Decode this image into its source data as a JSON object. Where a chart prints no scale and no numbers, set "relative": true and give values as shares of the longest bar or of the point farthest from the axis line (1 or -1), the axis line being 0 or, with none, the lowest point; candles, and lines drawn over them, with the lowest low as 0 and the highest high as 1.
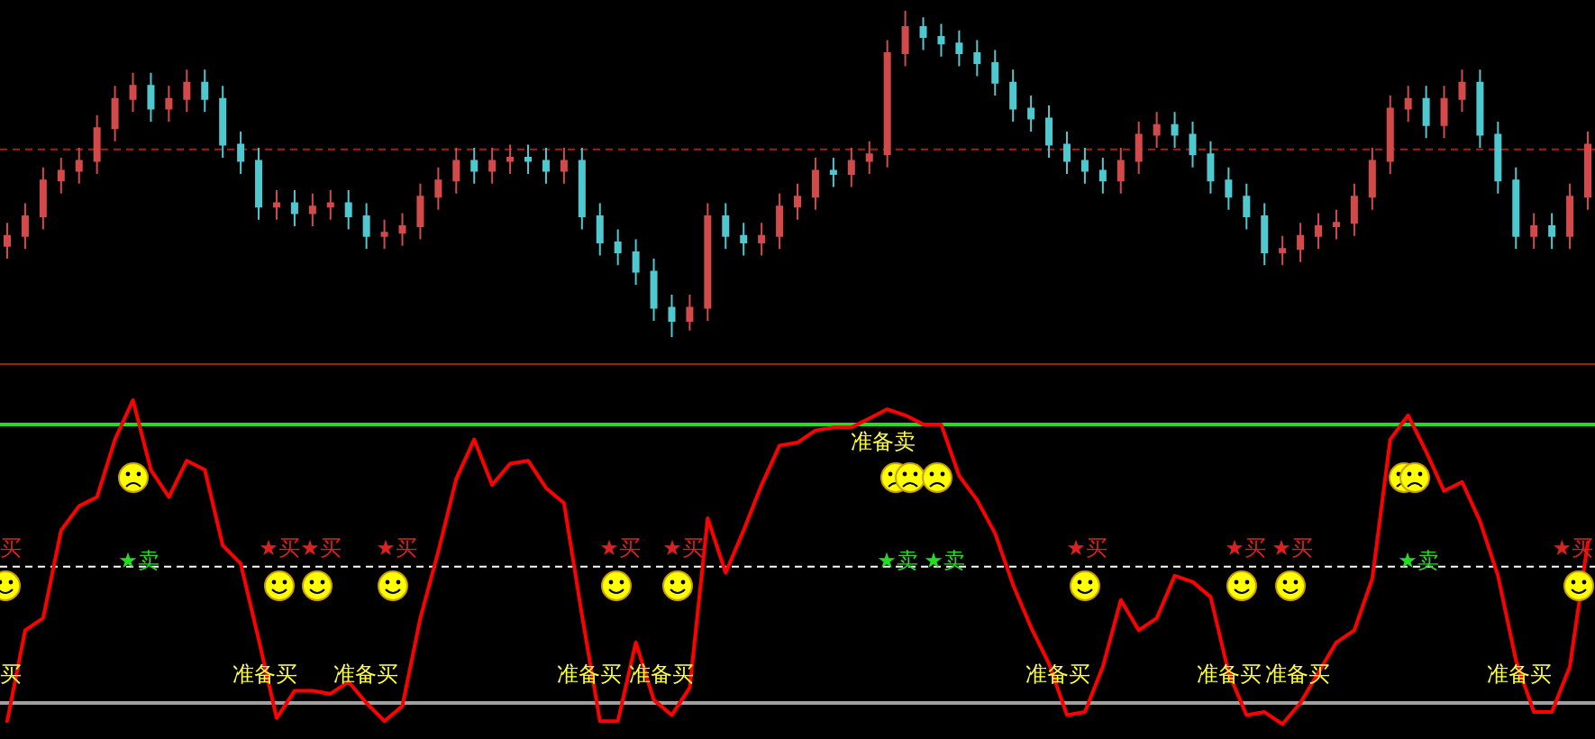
{
  "chart_data": [
    {
      "type": "candlestick",
      "relative": true,
      "categories": [
        null,
        null,
        null,
        null,
        null,
        null,
        null,
        null,
        null,
        null,
        null,
        null,
        null,
        null,
        null,
        null,
        null,
        null,
        null,
        null,
        null,
        null,
        null,
        null,
        null,
        null,
        null,
        null,
        null,
        null,
        null,
        null,
        null,
        null,
        null,
        null,
        null,
        null,
        null,
        null,
        null,
        null,
        null,
        null,
        null,
        null,
        null,
        null,
        null,
        null,
        null,
        null,
        null,
        null,
        null,
        null,
        null,
        null,
        null,
        null,
        null,
        null,
        null,
        null,
        null,
        null,
        null,
        null,
        null,
        null,
        null,
        null,
        null,
        null,
        null,
        null,
        null,
        null,
        null,
        null,
        null,
        null,
        null,
        null,
        null,
        null,
        null,
        null,
        null
      ],
      "ohlc": [
        [
          0.28,
          0.35,
          0.24,
          0.31
        ],
        [
          0.31,
          0.41,
          0.27,
          0.37
        ],
        [
          0.37,
          0.52,
          0.33,
          0.48
        ],
        [
          0.48,
          0.55,
          0.44,
          0.51
        ],
        [
          0.51,
          0.58,
          0.47,
          0.54
        ],
        [
          0.54,
          0.68,
          0.5,
          0.64
        ],
        [
          0.64,
          0.77,
          0.6,
          0.73
        ],
        [
          0.73,
          0.81,
          0.69,
          0.77
        ],
        [
          0.77,
          0.81,
          0.66,
          0.7
        ],
        [
          0.7,
          0.77,
          0.66,
          0.73
        ],
        [
          0.73,
          0.82,
          0.69,
          0.78
        ],
        [
          0.78,
          0.82,
          0.69,
          0.73
        ],
        [
          0.73,
          0.77,
          0.55,
          0.59
        ],
        [
          0.59,
          0.63,
          0.5,
          0.54
        ],
        [
          0.54,
          0.58,
          0.36,
          0.4
        ],
        [
          0.4,
          0.45,
          0.36,
          0.41
        ],
        [
          0.41,
          0.45,
          0.34,
          0.38
        ],
        [
          0.38,
          0.44,
          0.34,
          0.4
        ],
        [
          0.4,
          0.45,
          0.36,
          0.41
        ],
        [
          0.41,
          0.45,
          0.33,
          0.37
        ],
        [
          0.37,
          0.41,
          0.27,
          0.31
        ],
        [
          0.31,
          0.36,
          0.27,
          0.32
        ],
        [
          0.32,
          0.38,
          0.28,
          0.34
        ],
        [
          0.34,
          0.47,
          0.3,
          0.43
        ],
        [
          0.43,
          0.52,
          0.39,
          0.48
        ],
        [
          0.48,
          0.58,
          0.44,
          0.54
        ],
        [
          0.54,
          0.58,
          0.47,
          0.51
        ],
        [
          0.51,
          0.58,
          0.47,
          0.54
        ],
        [
          0.54,
          0.59,
          0.5,
          0.55
        ],
        [
          0.55,
          0.59,
          0.5,
          0.54
        ],
        [
          0.54,
          0.58,
          0.47,
          0.51
        ],
        [
          0.51,
          0.58,
          0.47,
          0.54
        ],
        [
          0.54,
          0.58,
          0.33,
          0.37
        ],
        [
          0.37,
          0.41,
          0.25,
          0.29
        ],
        [
          0.29,
          0.33,
          0.22,
          0.26
        ],
        [
          0.26,
          0.3,
          0.16,
          0.2
        ],
        [
          0.2,
          0.24,
          0.05,
          0.09
        ],
        [
          0.09,
          0.13,
          0,
          0.05
        ],
        [
          0.05,
          0.13,
          0.02,
          0.09
        ],
        [
          0.09,
          0.41,
          0.05,
          0.37
        ],
        [
          0.37,
          0.41,
          0.27,
          0.31
        ],
        [
          0.31,
          0.35,
          0.25,
          0.29
        ],
        [
          0.29,
          0.35,
          0.25,
          0.31
        ],
        [
          0.31,
          0.44,
          0.27,
          0.4
        ],
        [
          0.4,
          0.47,
          0.36,
          0.43
        ],
        [
          0.43,
          0.55,
          0.39,
          0.51
        ],
        [
          0.51,
          0.55,
          0.46,
          0.5
        ],
        [
          0.5,
          0.58,
          0.46,
          0.54
        ],
        [
          0.54,
          0.6,
          0.5,
          0.56
        ],
        [
          0.56,
          0.91,
          0.52,
          0.87
        ],
        [
          0.87,
          1,
          0.83,
          0.95
        ],
        [
          0.95,
          0.98,
          0.88,
          0.92
        ],
        [
          0.92,
          0.96,
          0.86,
          0.9
        ],
        [
          0.9,
          0.94,
          0.83,
          0.87
        ],
        [
          0.87,
          0.91,
          0.8,
          0.84
        ],
        [
          0.84,
          0.88,
          0.74,
          0.78
        ],
        [
          0.78,
          0.82,
          0.66,
          0.7
        ],
        [
          0.7,
          0.74,
          0.63,
          0.67
        ],
        [
          0.67,
          0.71,
          0.55,
          0.59
        ],
        [
          0.59,
          0.63,
          0.5,
          0.54
        ],
        [
          0.54,
          0.58,
          0.47,
          0.51
        ],
        [
          0.51,
          0.55,
          0.44,
          0.48
        ],
        [
          0.48,
          0.58,
          0.44,
          0.54
        ],
        [
          0.54,
          0.66,
          0.5,
          0.62
        ],
        [
          0.62,
          0.69,
          0.58,
          0.65
        ],
        [
          0.65,
          0.69,
          0.58,
          0.62
        ],
        [
          0.62,
          0.66,
          0.52,
          0.56
        ],
        [
          0.56,
          0.6,
          0.44,
          0.48
        ],
        [
          0.48,
          0.52,
          0.39,
          0.43
        ],
        [
          0.43,
          0.47,
          0.33,
          0.37
        ],
        [
          0.37,
          0.41,
          0.22,
          0.26
        ],
        [
          0.26,
          0.31,
          0.22,
          0.27
        ],
        [
          0.27,
          0.35,
          0.23,
          0.31
        ],
        [
          0.31,
          0.38,
          0.27,
          0.34
        ],
        [
          0.34,
          0.39,
          0.3,
          0.35
        ],
        [
          0.35,
          0.47,
          0.31,
          0.43
        ],
        [
          0.43,
          0.58,
          0.39,
          0.54
        ],
        [
          0.54,
          0.74,
          0.5,
          0.7
        ],
        [
          0.7,
          0.77,
          0.66,
          0.73
        ],
        [
          0.73,
          0.77,
          0.61,
          0.65
        ],
        [
          0.65,
          0.77,
          0.61,
          0.73
        ],
        [
          0.73,
          0.82,
          0.69,
          0.78
        ],
        [
          0.78,
          0.82,
          0.58,
          0.62
        ],
        [
          0.62,
          0.66,
          0.44,
          0.48
        ],
        [
          0.48,
          0.52,
          0.27,
          0.31
        ],
        [
          0.31,
          0.38,
          0.27,
          0.34
        ],
        [
          0.34,
          0.38,
          0.27,
          0.31
        ],
        [
          0.31,
          0.47,
          0.27,
          0.43
        ],
        [
          0.43,
          0.63,
          0.39,
          0.59
        ]
      ],
      "colors": [
        "#d24a4a",
        "#d24a4a",
        "#d24a4a",
        "#d24a4a",
        "#d24a4a",
        "#d24a4a",
        "#d24a4a",
        "#d24a4a",
        "#4fc8cf",
        "#d24a4a",
        "#d24a4a",
        "#4fc8cf",
        "#4fc8cf",
        "#4fc8cf",
        "#4fc8cf",
        "#d24a4a",
        "#4fc8cf",
        "#d24a4a",
        "#d24a4a",
        "#4fc8cf",
        "#4fc8cf",
        "#d24a4a",
        "#d24a4a",
        "#d24a4a",
        "#d24a4a",
        "#d24a4a",
        "#4fc8cf",
        "#d24a4a",
        "#d24a4a",
        "#4fc8cf",
        "#4fc8cf",
        "#d24a4a",
        "#4fc8cf",
        "#4fc8cf",
        "#4fc8cf",
        "#4fc8cf",
        "#4fc8cf",
        "#4fc8cf",
        "#d24a4a",
        "#d24a4a",
        "#4fc8cf",
        "#4fc8cf",
        "#d24a4a",
        "#d24a4a",
        "#d24a4a",
        "#d24a4a",
        "#4fc8cf",
        "#d24a4a",
        "#d24a4a",
        "#d24a4a",
        "#d24a4a",
        "#4fc8cf",
        "#4fc8cf",
        "#4fc8cf",
        "#4fc8cf",
        "#4fc8cf",
        "#4fc8cf",
        "#4fc8cf",
        "#4fc8cf",
        "#4fc8cf",
        "#4fc8cf",
        "#4fc8cf",
        "#d24a4a",
        "#d24a4a",
        "#d24a4a",
        "#4fc8cf",
        "#4fc8cf",
        "#4fc8cf",
        "#4fc8cf",
        "#4fc8cf",
        "#4fc8cf",
        "#d24a4a",
        "#d24a4a",
        "#d24a4a",
        "#d24a4a",
        "#d24a4a",
        "#d24a4a",
        "#d24a4a",
        "#d24a4a",
        "#4fc8cf",
        "#d24a4a",
        "#d24a4a",
        "#4fc8cf",
        "#4fc8cf",
        "#4fc8cf",
        "#d24a4a",
        "#4fc8cf",
        "#d24a4a",
        "#d24a4a"
      ],
      "ref_lines": [
        {
          "axis": "y",
          "value": 0.575,
          "color": "#a02020",
          "line_style": "dashed"
        }
      ]
    },
    {
      "type": "line",
      "relative": true,
      "categories": [
        null,
        null,
        null,
        null,
        null,
        null,
        null,
        null,
        null,
        null,
        null,
        null,
        null,
        null,
        null,
        null,
        null,
        null,
        null,
        null,
        null,
        null,
        null,
        null,
        null,
        null,
        null,
        null,
        null,
        null,
        null,
        null,
        null,
        null,
        null,
        null,
        null,
        null,
        null,
        null,
        null,
        null,
        null,
        null,
        null,
        null,
        null,
        null,
        null,
        null,
        null,
        null,
        null,
        null,
        null,
        null,
        null,
        null,
        null,
        null,
        null,
        null,
        null,
        null,
        null,
        null,
        null,
        null,
        null,
        null,
        null,
        null,
        null,
        null,
        null,
        null,
        null,
        null,
        null,
        null,
        null,
        null,
        null,
        null,
        null,
        null,
        null,
        null,
        null
      ],
      "ref_lines": [
        {
          "axis": "y",
          "value": 0.92,
          "color": "#22dd22",
          "line_style": "solid"
        },
        {
          "axis": "y",
          "value": 0.45,
          "color": "#ffffff",
          "line_style": "dashed"
        },
        {
          "axis": "y",
          "value": 0,
          "color": "#a0a0a0",
          "line_style": "solid"
        }
      ],
      "series": [
        {
          "color": "#ff0000",
          "line_style": "solid",
          "values": [
            -0.06,
            0.24,
            0.28,
            0.57,
            0.65,
            0.68,
            0.87,
            1,
            0.77,
            0.68,
            0.8,
            0.77,
            0.52,
            0.46,
            0.21,
            -0.05,
            0.04,
            0.04,
            0.03,
            0.07,
            0,
            -0.06,
            -0.01,
            0.28,
            0.5,
            0.74,
            0.87,
            0.72,
            0.79,
            0.8,
            0.71,
            0.66,
            0.29,
            -0.06,
            -0.06,
            0.2,
            0.01,
            -0.04,
            0.05,
            0.61,
            0.43,
            0.57,
            0.72,
            0.85,
            0.86,
            0.9,
            0.91,
            0.91,
            0.94,
            0.97,
            0.95,
            0.92,
            0.92,
            0.75,
            0.67,
            0.56,
            0.39,
            0.25,
            0.13,
            -0.04,
            -0.03,
            0.12,
            0.34,
            0.24,
            0.28,
            0.42,
            0.4,
            0.35,
            0.1,
            -0.04,
            -0.03,
            -0.07,
            0,
            0.1,
            0.2,
            0.24,
            0.41,
            0.87,
            0.95,
            0.83,
            0.7,
            0.73,
            0.6,
            0.42,
            0.14,
            -0.03,
            -0.03,
            0.12,
            0.53
          ]
        }
      ],
      "annotations": [
        "买",
        "★买",
        "★买",
        "★买",
        "★买",
        "★买",
        "★买",
        "★买",
        "★买",
        "★买",
        "★卖",
        "★卖",
        "★卖",
        "★卖",
        "买",
        "准备买",
        "准备买",
        "准备买",
        "准备买",
        "准备买",
        "准备买",
        "准备买",
        "准备买",
        "准备卖"
      ]
    }
  ]
}
